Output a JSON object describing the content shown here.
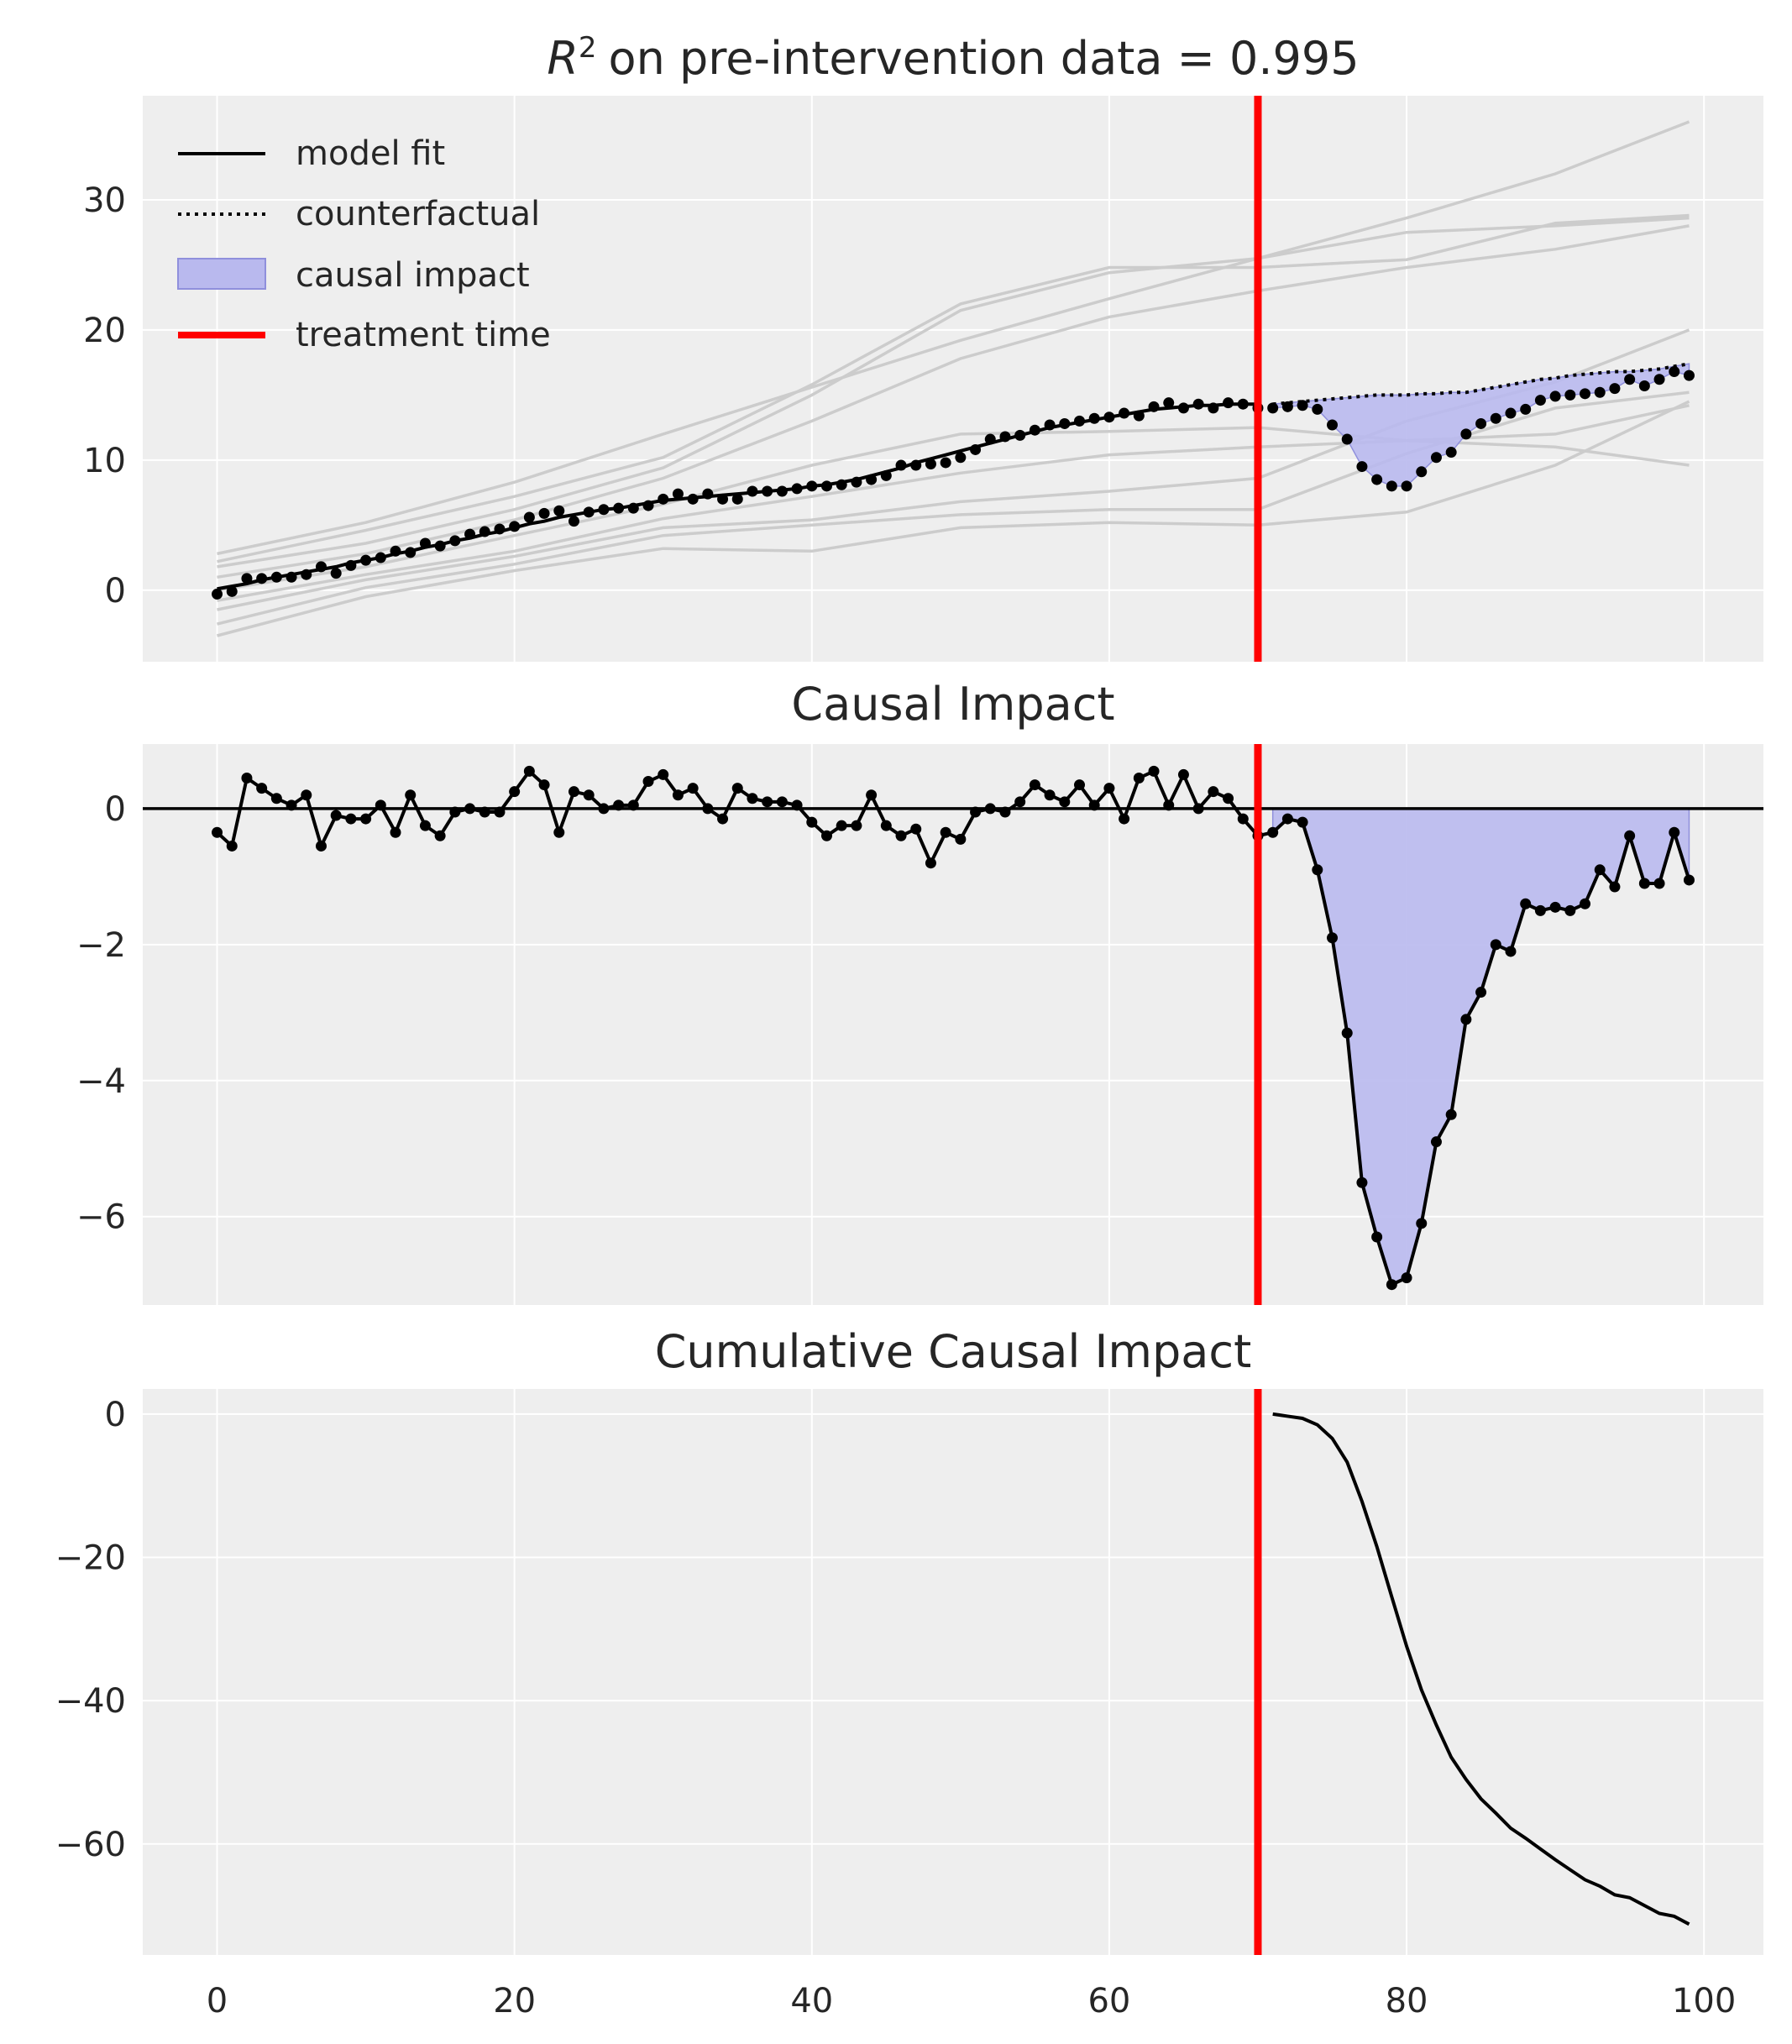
{
  "colors": {
    "background": "#eeeeee",
    "grid": "#ffffff",
    "model_fit": "#000000",
    "observed": "#000000",
    "control_series": "#cccccc",
    "causal_impact_fill": "#b9b9ee",
    "causal_impact_edge": "#8f8fdc",
    "treatment_time": "#ff0000"
  },
  "chart_data": [
    {
      "type": "line",
      "title": "on pre-intervention data = 0.995",
      "title_prefix": "R",
      "title_superscript": "2",
      "xlim": [
        -5,
        104
      ],
      "ylim": [
        -5.5,
        38
      ],
      "yticks": [
        0,
        10,
        20,
        30
      ],
      "grid": true,
      "legend_position": "top-left",
      "legend": [
        "model fit",
        "counterfactual",
        "causal impact",
        "treatment time"
      ],
      "treatment_time": 70,
      "observed": [
        -0.3,
        -0.1,
        0.9,
        0.9,
        1.0,
        1.0,
        1.2,
        1.8,
        1.3,
        1.9,
        2.3,
        2.5,
        3.0,
        2.9,
        3.6,
        3.4,
        3.8,
        4.3,
        4.5,
        4.7,
        4.9,
        5.6,
        5.9,
        6.1,
        5.3,
        6.0,
        6.2,
        6.3,
        6.3,
        6.5,
        7.0,
        7.4,
        7.0,
        7.4,
        7.0,
        7.0,
        7.6,
        7.6,
        7.6,
        7.8,
        8.0,
        8.0,
        8.1,
        8.3,
        8.5,
        8.8,
        9.6,
        9.6,
        9.7,
        9.8,
        10.2,
        10.8,
        11.6,
        11.8,
        11.9,
        12.3,
        12.7,
        12.8,
        13.0,
        13.2,
        13.3,
        13.6,
        13.4,
        14.1,
        14.4,
        14.0,
        14.3,
        14.0,
        14.4,
        14.3,
        14.0,
        14.0,
        14.1,
        14.2,
        13.9,
        12.7,
        11.6,
        9.5,
        8.5,
        8.0,
        8.0,
        9.1,
        10.2,
        10.6,
        12.0,
        12.8,
        13.2,
        13.6,
        13.9,
        14.6,
        14.9,
        15.0,
        15.1,
        15.2,
        15.5,
        16.2,
        15.7,
        16.2,
        16.8,
        16.5
      ],
      "model_fit": [
        0.1,
        0.3,
        0.5,
        0.8,
        1.0,
        1.2,
        1.4,
        1.6,
        1.8,
        2.1,
        2.3,
        2.5,
        2.8,
        3.0,
        3.3,
        3.5,
        3.8,
        4.0,
        4.3,
        4.5,
        4.8,
        5.1,
        5.3,
        5.6,
        5.8,
        6.0,
        6.2,
        6.3,
        6.5,
        6.7,
        6.9,
        7.0,
        7.1,
        7.2,
        7.3,
        7.4,
        7.5,
        7.6,
        7.7,
        7.8,
        8.0,
        8.1,
        8.3,
        8.5,
        8.8,
        9.1,
        9.4,
        9.8,
        10.1,
        10.4,
        10.7,
        11.0,
        11.3,
        11.6,
        11.9,
        12.2,
        12.5,
        12.7,
        12.9,
        13.1,
        13.3,
        13.5,
        13.7,
        13.9,
        14.0,
        14.1,
        14.2,
        14.2,
        14.3,
        14.3,
        14.3
      ],
      "counterfactual_x": [
        71,
        72,
        73,
        74,
        75,
        76,
        77,
        78,
        79,
        80,
        81,
        82,
        83,
        84,
        85,
        86,
        87,
        88,
        89,
        90,
        91,
        92,
        93,
        94,
        95,
        96,
        97,
        98,
        99
      ],
      "counterfactual": [
        14.3,
        14.4,
        14.5,
        14.6,
        14.7,
        14.8,
        14.9,
        15.0,
        15.0,
        15.0,
        15.1,
        15.1,
        15.2,
        15.2,
        15.4,
        15.6,
        15.8,
        16.0,
        16.2,
        16.3,
        16.5,
        16.6,
        16.7,
        16.8,
        16.8,
        16.9,
        17.0,
        17.2,
        17.4
      ],
      "controls": [
        [
          [
            0,
            2.8
          ],
          [
            10,
            5.2
          ],
          [
            20,
            8.3
          ],
          [
            30,
            12.0
          ],
          [
            40,
            15.6
          ],
          [
            50,
            19.2
          ],
          [
            60,
            22.4
          ],
          [
            70,
            25.5
          ],
          [
            80,
            28.6
          ],
          [
            90,
            32.0
          ],
          [
            99,
            36.0
          ]
        ],
        [
          [
            0,
            2.2
          ],
          [
            10,
            4.6
          ],
          [
            20,
            7.2
          ],
          [
            30,
            10.2
          ],
          [
            40,
            15.8
          ],
          [
            50,
            22.0
          ],
          [
            60,
            24.8
          ],
          [
            70,
            24.8
          ],
          [
            80,
            25.4
          ],
          [
            90,
            28.2
          ],
          [
            99,
            28.8
          ]
        ],
        [
          [
            0,
            1.8
          ],
          [
            10,
            3.6
          ],
          [
            20,
            6.2
          ],
          [
            30,
            9.4
          ],
          [
            40,
            15.0
          ],
          [
            50,
            21.5
          ],
          [
            60,
            24.4
          ],
          [
            70,
            25.5
          ],
          [
            80,
            27.5
          ],
          [
            90,
            28.0
          ],
          [
            99,
            28.6
          ]
        ],
        [
          [
            0,
            1.0
          ],
          [
            10,
            2.8
          ],
          [
            20,
            5.4
          ],
          [
            30,
            8.6
          ],
          [
            40,
            13.0
          ],
          [
            50,
            17.8
          ],
          [
            60,
            21.0
          ],
          [
            70,
            23.0
          ],
          [
            80,
            24.8
          ],
          [
            90,
            26.2
          ],
          [
            99,
            28.0
          ]
        ],
        [
          [
            0,
            0.0
          ],
          [
            10,
            1.8
          ],
          [
            20,
            4.2
          ],
          [
            30,
            6.6
          ],
          [
            40,
            9.6
          ],
          [
            50,
            12.0
          ],
          [
            60,
            12.2
          ],
          [
            70,
            12.5
          ],
          [
            80,
            11.5
          ],
          [
            90,
            11.0
          ],
          [
            99,
            9.6
          ]
        ],
        [
          [
            0,
            -0.8
          ],
          [
            10,
            1.2
          ],
          [
            20,
            3.0
          ],
          [
            30,
            5.5
          ],
          [
            40,
            7.2
          ],
          [
            50,
            9.0
          ],
          [
            60,
            10.4
          ],
          [
            70,
            11.0
          ],
          [
            80,
            11.5
          ],
          [
            90,
            12.0
          ],
          [
            99,
            14.2
          ]
        ],
        [
          [
            0,
            -1.5
          ],
          [
            10,
            0.8
          ],
          [
            20,
            2.6
          ],
          [
            30,
            4.8
          ],
          [
            40,
            5.4
          ],
          [
            50,
            6.8
          ],
          [
            60,
            7.6
          ],
          [
            70,
            8.6
          ],
          [
            80,
            13.0
          ],
          [
            90,
            16.0
          ],
          [
            99,
            20.0
          ]
        ],
        [
          [
            0,
            -2.6
          ],
          [
            10,
            0.2
          ],
          [
            20,
            2.0
          ],
          [
            30,
            4.2
          ],
          [
            40,
            5.0
          ],
          [
            50,
            5.8
          ],
          [
            60,
            6.2
          ],
          [
            70,
            6.2
          ],
          [
            80,
            10.5
          ],
          [
            90,
            14.0
          ],
          [
            99,
            15.2
          ]
        ],
        [
          [
            0,
            -3.5
          ],
          [
            10,
            -0.5
          ],
          [
            20,
            1.5
          ],
          [
            30,
            3.2
          ],
          [
            40,
            3.0
          ],
          [
            50,
            4.8
          ],
          [
            60,
            5.2
          ],
          [
            70,
            5.0
          ],
          [
            80,
            6.0
          ],
          [
            90,
            9.6
          ],
          [
            99,
            14.5
          ]
        ]
      ]
    },
    {
      "type": "line",
      "title": "Causal Impact",
      "xlim": [
        -5,
        104
      ],
      "ylim": [
        -7.3,
        0.95
      ],
      "yticks": [
        0,
        -2,
        -4,
        -6
      ],
      "grid": true,
      "treatment_time": 70,
      "values": [
        -0.35,
        -0.55,
        0.45,
        0.3,
        0.15,
        0.05,
        0.2,
        -0.55,
        -0.1,
        -0.15,
        -0.15,
        0.05,
        -0.35,
        0.2,
        -0.25,
        -0.4,
        -0.05,
        0.0,
        -0.05,
        -0.05,
        0.25,
        0.55,
        0.35,
        -0.35,
        0.25,
        0.2,
        0.0,
        0.05,
        0.05,
        0.4,
        0.5,
        0.2,
        0.3,
        0.0,
        -0.15,
        0.3,
        0.15,
        0.1,
        0.1,
        0.05,
        -0.2,
        -0.4,
        -0.25,
        -0.25,
        0.2,
        -0.25,
        -0.4,
        -0.3,
        -0.8,
        -0.35,
        -0.45,
        -0.05,
        0.0,
        -0.05,
        0.1,
        0.35,
        0.2,
        0.1,
        0.35,
        0.05,
        0.3,
        -0.15,
        0.45,
        0.55,
        0.05,
        0.5,
        0.0,
        0.25,
        0.15,
        -0.15,
        -0.4,
        -0.35,
        -0.15,
        -0.2,
        -0.9,
        -1.9,
        -3.3,
        -5.5,
        -6.3,
        -7.0,
        -6.9,
        -6.1,
        -4.9,
        -4.5,
        -3.1,
        -2.7,
        -2.0,
        -2.1,
        -1.4,
        -1.5,
        -1.45,
        -1.5,
        -1.4,
        -0.9,
        -1.15,
        -0.4,
        -1.1,
        -1.1,
        -0.35,
        -1.05
      ]
    },
    {
      "type": "line",
      "title": "Cumulative Causal Impact",
      "xlim": [
        -5,
        104
      ],
      "ylim": [
        -75.5,
        3.5
      ],
      "yticks": [
        0,
        -20,
        -40,
        -60
      ],
      "xticks": [
        0,
        20,
        40,
        60,
        80,
        100
      ],
      "grid": true,
      "treatment_time": 70,
      "x": [
        71,
        72,
        73,
        74,
        75,
        76,
        77,
        78,
        79,
        80,
        81,
        82,
        83,
        84,
        85,
        86,
        87,
        88,
        89,
        90,
        91,
        92,
        93,
        94,
        95,
        96,
        97,
        98,
        99
      ],
      "values": [
        0.0,
        -0.3,
        -0.6,
        -1.5,
        -3.4,
        -6.7,
        -12.2,
        -18.5,
        -25.5,
        -32.4,
        -38.5,
        -43.4,
        -47.9,
        -51.0,
        -53.7,
        -55.7,
        -57.8,
        -59.2,
        -60.7,
        -62.2,
        -63.6,
        -65.0,
        -65.9,
        -67.1,
        -67.5,
        -68.6,
        -69.7,
        -70.1,
        -71.2
      ]
    }
  ]
}
